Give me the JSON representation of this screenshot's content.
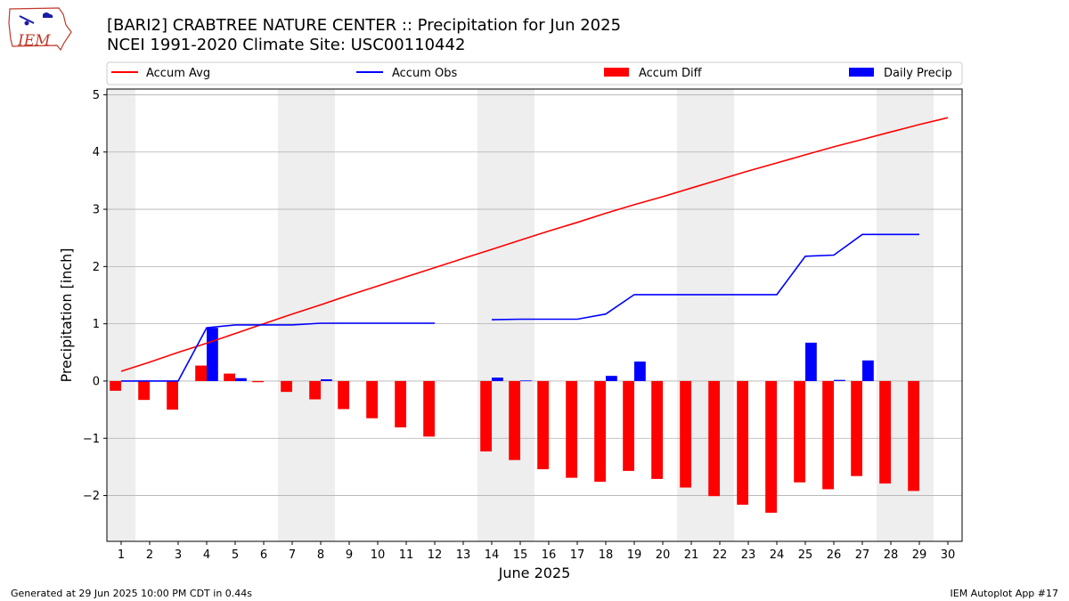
{
  "header": {
    "title_line1": "[BARI2] CRABTREE NATURE CENTER :: Precipitation for Jun 2025",
    "title_line2": "NCEI 1991-2020 Climate Site: USC00110442",
    "logo_text": "IEM"
  },
  "footer": {
    "left": "Generated at 29 Jun 2025 10:00 PM CDT in 0.44s",
    "right": "IEM Autoplot App #17"
  },
  "chart_data": {
    "type": "bar",
    "xlabel": "June 2025",
    "ylabel": "Precipitation [inch]",
    "ylim": [
      -2.8,
      5.1
    ],
    "xlim": [
      0.5,
      30.5
    ],
    "yticks": [
      -2,
      -1,
      0,
      1,
      2,
      3,
      4,
      5
    ],
    "ytick_labels": [
      "−2",
      "−1",
      "0",
      "1",
      "2",
      "3",
      "4",
      "5"
    ],
    "days": [
      1,
      2,
      3,
      4,
      5,
      6,
      7,
      8,
      9,
      10,
      11,
      12,
      13,
      14,
      15,
      16,
      17,
      18,
      19,
      20,
      21,
      22,
      23,
      24,
      25,
      26,
      27,
      28,
      29,
      30
    ],
    "weekend_bands": [
      [
        0.5,
        1.5
      ],
      [
        6.5,
        8.5
      ],
      [
        13.5,
        15.5
      ],
      [
        20.5,
        22.5
      ],
      [
        27.5,
        29.5
      ]
    ],
    "grid": "horizontal",
    "legend_position": "top",
    "colors": {
      "avg": "#ff0000",
      "obs": "#0000ff",
      "diff": "#ff0000",
      "daily": "#0000ff",
      "band": "#eeeeee"
    },
    "legend": [
      "Accum Avg",
      "Accum Obs",
      "Accum Diff",
      "Daily Precip"
    ],
    "accum_avg": [
      0.17,
      0.33,
      0.5,
      0.66,
      0.83,
      1.0,
      1.17,
      1.33,
      1.5,
      1.66,
      1.82,
      1.98,
      2.14,
      2.3,
      2.46,
      2.62,
      2.77,
      2.93,
      3.08,
      3.22,
      3.37,
      3.52,
      3.67,
      3.81,
      3.95,
      4.09,
      4.22,
      4.35,
      4.48,
      4.6
    ],
    "accum_obs": [
      0.0,
      0.0,
      0.0,
      0.93,
      0.98,
      0.98,
      0.98,
      1.01,
      1.01,
      1.01,
      1.01,
      1.01,
      null,
      1.07,
      1.08,
      1.08,
      1.08,
      1.17,
      1.51,
      1.51,
      1.51,
      1.51,
      1.51,
      1.51,
      2.18,
      2.2,
      2.56,
      2.56,
      2.56,
      null
    ],
    "accum_diff": [
      -0.17,
      -0.33,
      -0.5,
      0.27,
      0.13,
      -0.02,
      -0.19,
      -0.32,
      -0.49,
      -0.65,
      -0.81,
      -0.97,
      null,
      -1.23,
      -1.38,
      -1.54,
      -1.69,
      -1.76,
      -1.57,
      -1.71,
      -1.86,
      -2.01,
      -2.16,
      -2.3,
      -1.77,
      -1.89,
      -1.66,
      -1.79,
      -1.92,
      null
    ],
    "daily_precip": [
      0.0,
      0.0,
      0.0,
      0.93,
      0.05,
      0.0,
      0.0,
      0.03,
      0.0,
      0.0,
      0.0,
      0.0,
      null,
      0.06,
      0.01,
      0.0,
      0.0,
      0.09,
      0.34,
      0.0,
      0.0,
      0.0,
      0.0,
      0.0,
      0.67,
      0.02,
      0.36,
      0.0,
      0.0,
      null
    ]
  }
}
